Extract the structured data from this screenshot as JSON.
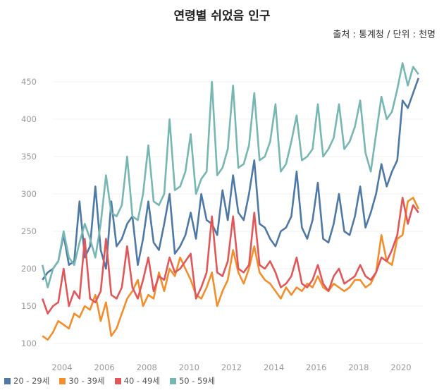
{
  "chart_data": {
    "type": "line",
    "title": "연령별 쉬었음 인구",
    "subtitle": "출처 : 통계청 / 단위 : 천명",
    "xlabel": "",
    "ylabel": "",
    "x_start": "2003-Q1",
    "x_frequency": "quarterly (approx. of monthly series)",
    "x_ticks": [
      "2004",
      "2006",
      "2008",
      "2010",
      "2012",
      "2014",
      "2016",
      "2018",
      "2020"
    ],
    "y_ticks": [
      100,
      150,
      200,
      250,
      300,
      350,
      400,
      450
    ],
    "ylim": [
      95,
      480
    ],
    "grid": true,
    "legend_position": "bottom-left",
    "series": [
      {
        "name": "20 - 29세",
        "color": "#4e79a7",
        "values": [
          185,
          195,
          200,
          210,
          245,
          205,
          210,
          290,
          215,
          230,
          310,
          225,
          200,
          290,
          230,
          240,
          260,
          270,
          205,
          240,
          290,
          235,
          225,
          260,
          300,
          220,
          230,
          245,
          275,
          240,
          300,
          265,
          260,
          245,
          305,
          265,
          325,
          275,
          265,
          300,
          345,
          260,
          255,
          240,
          230,
          250,
          255,
          270,
          330,
          255,
          240,
          265,
          315,
          240,
          235,
          260,
          300,
          250,
          245,
          270,
          310,
          255,
          275,
          300,
          340,
          310,
          330,
          345,
          425,
          415,
          435,
          455
        ]
      },
      {
        "name": "30 - 39세",
        "color": "#f28e2b",
        "values": [
          110,
          105,
          115,
          130,
          125,
          120,
          140,
          135,
          150,
          145,
          165,
          130,
          155,
          110,
          120,
          140,
          160,
          170,
          185,
          150,
          165,
          160,
          195,
          170,
          200,
          190,
          215,
          200,
          185,
          165,
          160,
          175,
          195,
          150,
          170,
          185,
          225,
          195,
          180,
          200,
          230,
          195,
          185,
          180,
          170,
          160,
          175,
          165,
          175,
          170,
          180,
          175,
          190,
          175,
          170,
          180,
          175,
          170,
          175,
          185,
          185,
          175,
          180,
          195,
          245,
          210,
          205,
          240,
          245,
          290,
          295,
          280
        ]
      },
      {
        "name": "40 - 49세",
        "color": "#e15759",
        "values": [
          160,
          140,
          150,
          155,
          200,
          150,
          170,
          160,
          240,
          160,
          155,
          170,
          240,
          165,
          160,
          175,
          230,
          175,
          160,
          185,
          215,
          170,
          190,
          185,
          215,
          195,
          200,
          210,
          220,
          160,
          175,
          195,
          270,
          195,
          190,
          210,
          270,
          200,
          195,
          205,
          275,
          205,
          200,
          210,
          195,
          175,
          180,
          190,
          215,
          180,
          175,
          185,
          205,
          180,
          170,
          190,
          200,
          180,
          185,
          190,
          205,
          190,
          185,
          195,
          215,
          210,
          225,
          245,
          295,
          260,
          285,
          275
        ]
      },
      {
        "name": "50 - 59세",
        "color": "#76b7b2",
        "values": [
          205,
          175,
          200,
          210,
          250,
          215,
          205,
          235,
          260,
          240,
          215,
          260,
          325,
          275,
          270,
          285,
          350,
          270,
          265,
          300,
          365,
          290,
          285,
          300,
          400,
          305,
          310,
          330,
          380,
          300,
          320,
          330,
          450,
          325,
          335,
          360,
          445,
          335,
          340,
          365,
          435,
          345,
          350,
          370,
          420,
          330,
          340,
          370,
          405,
          345,
          350,
          360,
          420,
          350,
          360,
          375,
          420,
          360,
          370,
          390,
          425,
          355,
          330,
          380,
          430,
          400,
          410,
          440,
          475,
          445,
          470,
          460
        ]
      }
    ]
  }
}
